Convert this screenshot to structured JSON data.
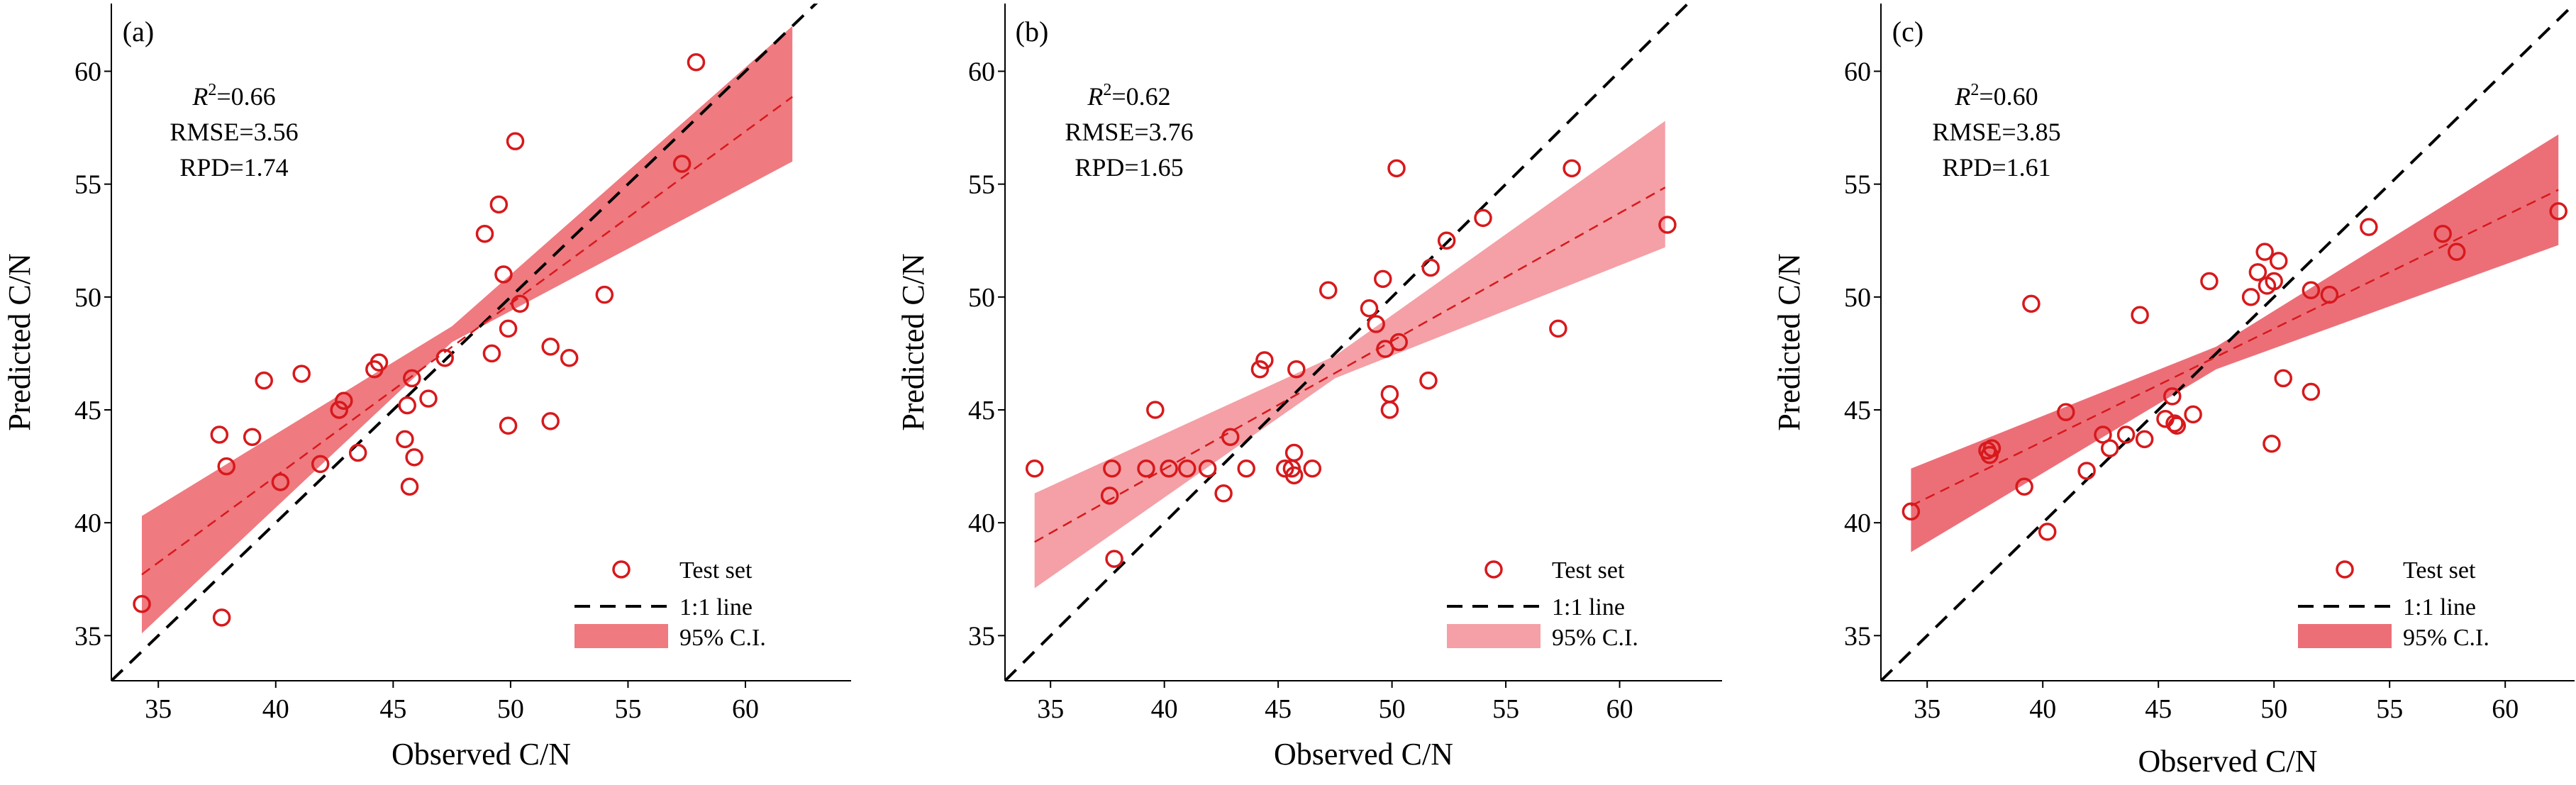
{
  "colors": {
    "point": "#d7191c",
    "fit": "#d7191c",
    "ci": "#f08080",
    "one_to_one": "#000000"
  },
  "chart_data": [
    {
      "type": "scatter",
      "panel_label": "(a)",
      "xlabel": "Observed C/N",
      "ylabel": "Predicted C/N",
      "xlim": [
        33,
        64.5
      ],
      "ylim": [
        33,
        63
      ],
      "xticks": [
        "35",
        "40",
        "45",
        "50",
        "55",
        "60"
      ],
      "yticks": [
        "35",
        "40",
        "45",
        "50",
        "55",
        "60"
      ],
      "stats": {
        "r2_symbol": "R",
        "r2_sup": "2",
        "r2_value": "=0.66",
        "rmse": "RMSE=3.56",
        "rpd": "RPD=1.74"
      },
      "legend": {
        "position": "bottom-right",
        "points": "Test set",
        "line": "1:1 line",
        "ci": "95% C.I."
      },
      "ci_color": "#ef7a80",
      "fit": {
        "slope": 0.764,
        "intercept": 11.5
      },
      "ci_band": {
        "x": [
          34.3,
          47.5,
          62.0
        ],
        "lower": [
          35.1,
          48.0,
          56.0
        ],
        "upper": [
          40.3,
          48.7,
          62.0
        ]
      },
      "points": [
        [
          34.3,
          36.4
        ],
        [
          37.6,
          43.9
        ],
        [
          37.7,
          35.8
        ],
        [
          37.9,
          42.5
        ],
        [
          39.0,
          43.8
        ],
        [
          39.5,
          46.3
        ],
        [
          40.2,
          41.8
        ],
        [
          41.1,
          46.6
        ],
        [
          41.9,
          42.6
        ],
        [
          42.7,
          45.0
        ],
        [
          42.9,
          45.4
        ],
        [
          43.5,
          43.1
        ],
        [
          44.2,
          46.8
        ],
        [
          44.4,
          47.1
        ],
        [
          45.5,
          43.7
        ],
        [
          45.6,
          45.2
        ],
        [
          45.7,
          41.6
        ],
        [
          45.8,
          46.4
        ],
        [
          45.9,
          42.9
        ],
        [
          46.5,
          45.5
        ],
        [
          47.2,
          47.3
        ],
        [
          48.9,
          52.8
        ],
        [
          49.2,
          47.5
        ],
        [
          49.5,
          54.1
        ],
        [
          49.7,
          51.0
        ],
        [
          49.9,
          44.3
        ],
        [
          49.9,
          48.6
        ],
        [
          50.2,
          56.9
        ],
        [
          50.4,
          49.7
        ],
        [
          51.7,
          47.8
        ],
        [
          51.7,
          44.5
        ],
        [
          52.5,
          47.3
        ],
        [
          54.0,
          50.1
        ],
        [
          57.3,
          55.9
        ],
        [
          57.9,
          60.4
        ]
      ]
    },
    {
      "type": "scatter",
      "panel_label": "(b)",
      "xlabel": "Observed C/N",
      "ylabel": "Predicted C/N",
      "xlim": [
        33,
        64.5
      ],
      "ylim": [
        33,
        63
      ],
      "xticks": [
        "35",
        "40",
        "45",
        "50",
        "55",
        "60"
      ],
      "yticks": [
        "35",
        "40",
        "45",
        "50",
        "55",
        "60"
      ],
      "stats": {
        "r2_symbol": "R",
        "r2_sup": "2",
        "r2_value": "=0.62",
        "rmse": "RMSE=3.76",
        "rpd": "RPD=1.65"
      },
      "legend": {
        "position": "bottom-right",
        "points": "Test set",
        "line": "1:1 line",
        "ci": "95% C.I."
      },
      "ci_color": "#f4a0a6",
      "fit": {
        "slope": 0.567,
        "intercept": 19.7
      },
      "ci_band": {
        "x": [
          34.3,
          47.5,
          62.0
        ],
        "lower": [
          37.1,
          46.4,
          52.2
        ],
        "upper": [
          41.3,
          47.4,
          57.8
        ]
      },
      "points": [
        [
          34.3,
          42.4
        ],
        [
          37.6,
          41.2
        ],
        [
          37.7,
          42.4
        ],
        [
          37.8,
          38.4
        ],
        [
          39.2,
          42.4
        ],
        [
          39.6,
          45.0
        ],
        [
          40.2,
          42.4
        ],
        [
          41.0,
          42.4
        ],
        [
          41.9,
          42.4
        ],
        [
          42.6,
          41.3
        ],
        [
          42.9,
          43.8
        ],
        [
          43.6,
          42.4
        ],
        [
          44.2,
          46.8
        ],
        [
          44.4,
          47.2
        ],
        [
          45.3,
          42.4
        ],
        [
          45.6,
          42.4
        ],
        [
          45.7,
          43.1
        ],
        [
          45.7,
          42.1
        ],
        [
          45.8,
          46.8
        ],
        [
          46.5,
          42.4
        ],
        [
          47.2,
          50.3
        ],
        [
          49.0,
          49.5
        ],
        [
          49.3,
          48.8
        ],
        [
          49.6,
          50.8
        ],
        [
          49.7,
          47.7
        ],
        [
          49.9,
          45.7
        ],
        [
          49.9,
          45.0
        ],
        [
          50.2,
          55.7
        ],
        [
          50.3,
          48.0
        ],
        [
          51.6,
          46.3
        ],
        [
          51.7,
          51.3
        ],
        [
          52.4,
          52.5
        ],
        [
          54.0,
          53.5
        ],
        [
          57.3,
          48.6
        ],
        [
          57.9,
          55.7
        ],
        [
          62.1,
          53.2
        ]
      ]
    },
    {
      "type": "scatter",
      "panel_label": "(c)",
      "xlabel": "Observed C/N",
      "ylabel": "Predicted C/N",
      "xlim": [
        33,
        63
      ],
      "ylim": [
        33,
        63
      ],
      "xticks": [
        "35",
        "40",
        "45",
        "50",
        "55",
        "60"
      ],
      "yticks": [
        "35",
        "40",
        "45",
        "50",
        "55",
        "60"
      ],
      "stats": {
        "r2_symbol": "R",
        "r2_sup": "2",
        "r2_value": "=0.60",
        "rmse": "RMSE=3.85",
        "rpd": "RPD=1.61"
      },
      "legend": {
        "position": "bottom-right",
        "points": "Test set",
        "line": "1:1 line",
        "ci": "95% C.I."
      },
      "ci_color": "#ec6f78",
      "fit": {
        "slope": 0.5,
        "intercept": 23.6
      },
      "ci_band": {
        "x": [
          34.3,
          47.5,
          62.3
        ],
        "lower": [
          38.7,
          46.8,
          52.3
        ],
        "upper": [
          42.4,
          47.8,
          57.2
        ]
      },
      "points": [
        [
          34.3,
          40.5
        ],
        [
          37.6,
          43.2
        ],
        [
          37.7,
          43.0
        ],
        [
          37.8,
          43.3
        ],
        [
          39.2,
          41.6
        ],
        [
          39.5,
          49.7
        ],
        [
          40.2,
          39.6
        ],
        [
          41.0,
          44.9
        ],
        [
          41.9,
          42.3
        ],
        [
          42.6,
          43.9
        ],
        [
          42.9,
          43.3
        ],
        [
          43.6,
          43.9
        ],
        [
          44.2,
          49.2
        ],
        [
          44.4,
          43.7
        ],
        [
          45.3,
          44.6
        ],
        [
          45.6,
          45.6
        ],
        [
          45.7,
          44.4
        ],
        [
          45.8,
          44.3
        ],
        [
          46.5,
          44.8
        ],
        [
          47.2,
          50.7
        ],
        [
          49.0,
          50.0
        ],
        [
          49.3,
          51.1
        ],
        [
          49.6,
          52.0
        ],
        [
          49.7,
          50.5
        ],
        [
          49.9,
          43.5
        ],
        [
          50.0,
          50.7
        ],
        [
          50.2,
          51.6
        ],
        [
          50.4,
          46.4
        ],
        [
          51.6,
          45.8
        ],
        [
          51.6,
          50.3
        ],
        [
          52.4,
          50.1
        ],
        [
          54.1,
          53.1
        ],
        [
          57.3,
          52.8
        ],
        [
          57.9,
          52.0
        ],
        [
          62.3,
          53.8
        ]
      ]
    }
  ]
}
